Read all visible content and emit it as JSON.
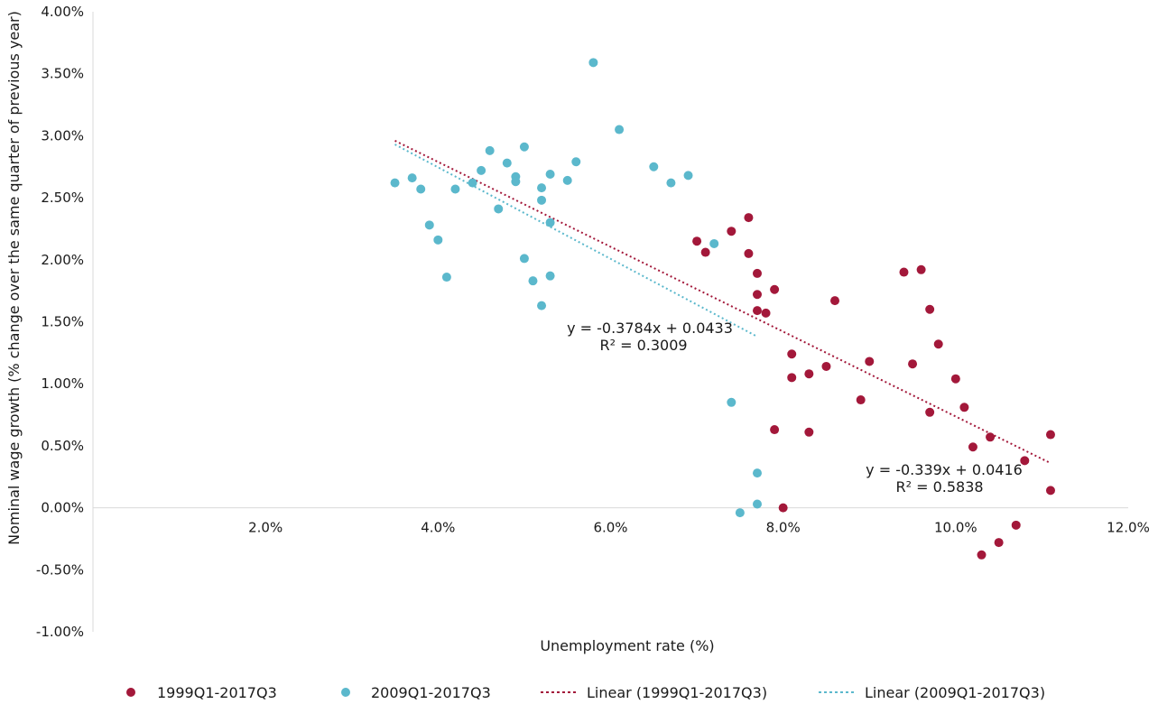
{
  "chart_data": {
    "type": "scatter",
    "xlabel": "Unemployment rate (%)",
    "ylabel": "Nominal wage growth (% change over the same quarter of previous year)",
    "xlim": [
      0,
      12
    ],
    "ylim": [
      -1,
      4
    ],
    "x_ticks": [
      2,
      4,
      6,
      8,
      10,
      12
    ],
    "x_tick_labels": [
      "2.0%",
      "4.0%",
      "6.0%",
      "8.0%",
      "10.0%",
      "12.0%"
    ],
    "y_ticks": [
      -1,
      -0.5,
      0,
      0.5,
      1,
      1.5,
      2,
      2.5,
      3,
      3.5,
      4
    ],
    "y_tick_labels": [
      "-1.00%",
      "-0.50%",
      "0.00%",
      "0.50%",
      "1.00%",
      "1.50%",
      "2.00%",
      "2.50%",
      "3.00%",
      "3.50%",
      "4.00%"
    ],
    "grid": false,
    "legend_position": "bottom",
    "series": [
      {
        "name": "1999Q1-2017Q3",
        "kind": "scatter",
        "color": "#a3183a",
        "x": [
          7.0,
          7.1,
          7.4,
          7.6,
          7.6,
          7.7,
          7.7,
          7.7,
          7.8,
          7.9,
          8.1,
          8.1,
          8.3,
          8.5,
          8.6,
          9.0,
          8.9,
          9.4,
          9.6,
          9.5,
          9.7,
          9.8,
          9.7,
          10.0,
          10.1,
          10.2,
          10.4,
          10.7,
          10.8,
          11.1,
          11.1,
          10.5,
          10.3,
          7.9,
          8.3,
          8.0
        ],
        "y": [
          2.15,
          2.06,
          2.23,
          2.34,
          2.05,
          1.89,
          1.72,
          1.59,
          1.57,
          1.76,
          1.24,
          1.05,
          1.08,
          1.14,
          1.67,
          1.18,
          0.87,
          1.9,
          1.92,
          1.16,
          1.6,
          1.32,
          0.77,
          1.04,
          0.81,
          0.49,
          0.57,
          -0.14,
          0.38,
          0.59,
          0.14,
          -0.28,
          -0.38,
          0.63,
          0.61,
          0.0
        ]
      },
      {
        "name": "2009Q1-2017Q3",
        "kind": "scatter",
        "color": "#5bb8cc",
        "x": [
          3.5,
          3.7,
          3.8,
          3.9,
          4.0,
          4.1,
          4.2,
          4.4,
          4.5,
          4.6,
          4.7,
          4.8,
          4.9,
          4.9,
          5.0,
          5.0,
          5.1,
          5.2,
          5.2,
          5.2,
          5.3,
          5.3,
          5.3,
          5.5,
          5.6,
          5.8,
          6.1,
          6.5,
          6.7,
          6.9,
          7.2,
          7.4,
          7.7,
          7.7,
          7.5
        ],
        "y": [
          2.62,
          2.66,
          2.57,
          2.28,
          2.16,
          1.86,
          2.57,
          2.62,
          2.72,
          2.88,
          2.41,
          2.78,
          2.67,
          2.63,
          2.91,
          2.01,
          1.83,
          2.58,
          2.48,
          1.63,
          2.69,
          2.3,
          1.87,
          2.64,
          2.79,
          3.59,
          3.05,
          2.75,
          2.62,
          2.68,
          2.13,
          0.85,
          0.28,
          0.03,
          -0.04
        ]
      },
      {
        "name": "Linear (1999Q1-2017Q3)",
        "kind": "trendline",
        "color": "#a3183a",
        "x": [
          3.5,
          11.1
        ],
        "y": [
          2.96,
          0.36
        ]
      },
      {
        "name": "Linear (2009Q1-2017Q3)",
        "kind": "trendline",
        "color": "#5bb8cc",
        "x": [
          3.5,
          7.7
        ],
        "y": [
          2.93,
          1.38
        ]
      }
    ],
    "annotations": [
      {
        "line1": "y = -0.3784x + 0.0433",
        "line2": "R² = 0.3009"
      },
      {
        "line1": "y = -0.339x + 0.0416",
        "line2": "R² = 0.5838"
      }
    ]
  }
}
